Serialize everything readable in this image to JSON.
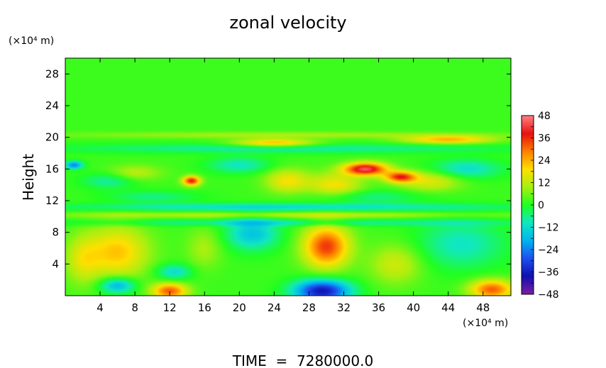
{
  "chart_data": {
    "type": "heatmap",
    "title": "zonal velocity",
    "xlabel": "",
    "ylabel": "Height",
    "x_unit": "(×10⁴ m)",
    "y_unit": "(×10⁴ m)",
    "footer": "TIME  =  7280000.0",
    "xlim": [
      0,
      51.2
    ],
    "ylim": [
      0,
      30
    ],
    "x_ticks": [
      4,
      8,
      12,
      16,
      20,
      24,
      28,
      32,
      36,
      40,
      44,
      48
    ],
    "y_ticks": [
      4,
      8,
      12,
      16,
      20,
      24,
      28
    ],
    "colorbar": {
      "min": -48,
      "max": 48,
      "ticks": [
        48,
        36,
        24,
        12,
        0,
        -12,
        -24,
        -36,
        -48
      ],
      "tick_labels": [
        "48",
        "36",
        "24",
        "12",
        "0",
        "−12",
        "−24",
        "−36",
        "−48"
      ],
      "colors": [
        "#7a1fa0",
        "#1010b0",
        "#1e50f0",
        "#00b4f0",
        "#10e8c0",
        "#20ff20",
        "#a8f010",
        "#ffe000",
        "#ff8000",
        "#e81010",
        "#ff8080"
      ]
    },
    "background_value": 2,
    "features": [
      {
        "x": 29.5,
        "y": 0.6,
        "rx": 3.2,
        "ry": 1.4,
        "value": -40
      },
      {
        "x": 30,
        "y": 6.2,
        "rx": 2.6,
        "ry": 2.6,
        "value": 33
      },
      {
        "x": 6,
        "y": 5.5,
        "rx": 3.5,
        "ry": 3.2,
        "value": 20
      },
      {
        "x": 12,
        "y": 0.6,
        "rx": 2.0,
        "ry": 1.0,
        "value": 30
      },
      {
        "x": 49,
        "y": 0.8,
        "rx": 2.5,
        "ry": 1.2,
        "value": 30
      },
      {
        "x": 6,
        "y": 1.3,
        "rx": 2.0,
        "ry": 1.0,
        "value": -22
      },
      {
        "x": 12.5,
        "y": 3.0,
        "rx": 2.0,
        "ry": 1.0,
        "value": -14
      },
      {
        "x": 21.5,
        "y": 7.8,
        "rx": 3.0,
        "ry": 2.0,
        "value": -18
      },
      {
        "x": 45.5,
        "y": 6.5,
        "rx": 5.0,
        "ry": 3.0,
        "value": -12
      },
      {
        "x": 38,
        "y": 4.0,
        "rx": 3.0,
        "ry": 2.5,
        "value": 12
      },
      {
        "x": 2,
        "y": 4.5,
        "rx": 2.0,
        "ry": 3.0,
        "value": 12
      },
      {
        "x": 16,
        "y": 6.0,
        "rx": 2.0,
        "ry": 2.5,
        "value": 8
      },
      {
        "x": 34.5,
        "y": 16.0,
        "rx": 2.5,
        "ry": 0.8,
        "value": 42
      },
      {
        "x": 38.5,
        "y": 15.0,
        "rx": 1.8,
        "ry": 0.7,
        "value": 32
      },
      {
        "x": 14.5,
        "y": 14.5,
        "rx": 1.0,
        "ry": 0.6,
        "value": 36
      },
      {
        "x": 24,
        "y": 19.3,
        "rx": 4.5,
        "ry": 0.5,
        "value": 22
      },
      {
        "x": 44,
        "y": 19.7,
        "rx": 5.0,
        "ry": 0.5,
        "value": 22
      },
      {
        "x": 25.5,
        "y": 14.5,
        "rx": 2.5,
        "ry": 1.5,
        "value": 16
      },
      {
        "x": 31,
        "y": 14.0,
        "rx": 3.0,
        "ry": 1.5,
        "value": 16
      },
      {
        "x": 42,
        "y": 14.5,
        "rx": 3.5,
        "ry": 1.3,
        "value": 14
      },
      {
        "x": 8,
        "y": 15.5,
        "rx": 3.0,
        "ry": 1.0,
        "value": 10
      },
      {
        "x": 1,
        "y": 16.5,
        "rx": 1.0,
        "ry": 0.5,
        "value": -26
      },
      {
        "x": 5,
        "y": 14.5,
        "rx": 3.0,
        "ry": 1.0,
        "value": -10
      },
      {
        "x": 20,
        "y": 16.5,
        "rx": 3.5,
        "ry": 1.0,
        "value": -12
      },
      {
        "x": 46,
        "y": 16.0,
        "rx": 4.0,
        "ry": 1.2,
        "value": -14
      },
      {
        "x": 10,
        "y": 12.5,
        "rx": 5.0,
        "ry": 0.7,
        "value": -8
      },
      {
        "x": 35,
        "y": 12.5,
        "rx": 6.0,
        "ry": 0.8,
        "value": -8
      },
      {
        "x": 25,
        "y": 11.2,
        "rx": 26.0,
        "ry": 0.5,
        "value": -14
      },
      {
        "x": 25,
        "y": 10.2,
        "rx": 26.0,
        "ry": 0.35,
        "value": 10
      },
      {
        "x": 25,
        "y": 9.2,
        "rx": 26.0,
        "ry": 0.4,
        "value": -10
      },
      {
        "x": 25,
        "y": 18.6,
        "rx": 26.0,
        "ry": 0.6,
        "value": -10
      },
      {
        "x": 25,
        "y": 20.3,
        "rx": 26.0,
        "ry": 0.4,
        "value": 8
      }
    ]
  }
}
